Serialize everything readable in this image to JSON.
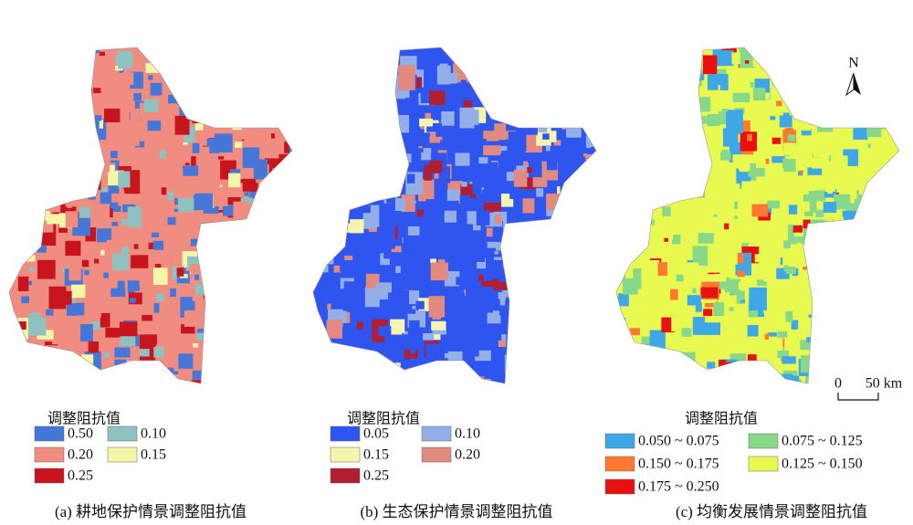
{
  "panels": [
    {
      "legend_title": "调整阻抗值",
      "caption": "(a) 耕地保护情景调整阻抗值",
      "legend": [
        {
          "label": "0.50",
          "color": "#4677d8"
        },
        {
          "label": "0.10",
          "color": "#8fc1c0"
        },
        {
          "label": "0.20",
          "color": "#f08c80"
        },
        {
          "label": "0.15",
          "color": "#f4f6a8"
        },
        {
          "label": "0.25",
          "color": "#c8141c"
        }
      ]
    },
    {
      "legend_title": "调整阻抗值",
      "caption": "(b) 生态保护情景调整阻抗值",
      "legend": [
        {
          "label": "0.05",
          "color": "#2f55f0"
        },
        {
          "label": "0.10",
          "color": "#94aee8"
        },
        {
          "label": "0.15",
          "color": "#f6f5b0"
        },
        {
          "label": "0.20",
          "color": "#e08a80"
        },
        {
          "label": "0.25",
          "color": "#b01e30"
        }
      ]
    },
    {
      "legend_title": "调整阻抗值",
      "caption": "(c) 均衡发展情景调整阻抗值",
      "legend": [
        {
          "label": "0.050 ~ 0.075",
          "color": "#3da7e8"
        },
        {
          "label": "0.075 ~ 0.125",
          "color": "#88d88a"
        },
        {
          "label": "0.150 ~ 0.175",
          "color": "#ff7a30"
        },
        {
          "label": "0.125 ~ 0.150",
          "color": "#e8fa50"
        },
        {
          "label": "0.175 ~ 0.250",
          "color": "#e81010"
        }
      ]
    }
  ],
  "north": "N",
  "scale_bar": {
    "start": "0",
    "end": "50 km"
  }
}
